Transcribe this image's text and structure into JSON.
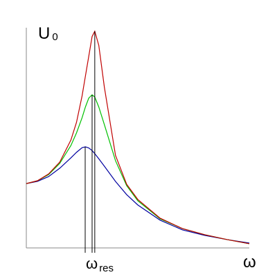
{
  "chart_data": {
    "type": "line",
    "y_label": {
      "text": "U",
      "subscript": "0"
    },
    "x_label": "ω",
    "annotation": {
      "text": "ω",
      "subscript": "res"
    },
    "x": [
      0,
      0.5,
      1,
      1.5,
      2,
      2.25,
      2.5,
      2.65,
      2.8,
      2.95,
      3.07,
      3.25,
      3.5,
      4,
      4.5,
      5,
      6,
      7,
      8,
      9,
      10
    ],
    "series": [
      {
        "color": "#0000a0",
        "values": [
          2.92,
          3.02,
          3.24,
          3.62,
          4.09,
          4.34,
          4.55,
          4.59,
          4.54,
          4.42,
          4.28,
          4.05,
          3.71,
          3.02,
          2.42,
          1.95,
          1.26,
          0.82,
          0.57,
          0.38,
          0.22
        ]
      },
      {
        "color": "#00c000",
        "values": [
          2.92,
          3.05,
          3.33,
          3.84,
          4.65,
          5.22,
          5.91,
          6.4,
          6.8,
          6.95,
          6.85,
          6.4,
          5.6,
          3.96,
          2.83,
          2.14,
          1.32,
          0.88,
          0.6,
          0.38,
          0.19
        ]
      },
      {
        "color": "#c00000",
        "values": [
          2.92,
          3.05,
          3.36,
          3.9,
          4.9,
          5.7,
          6.9,
          7.8,
          8.7,
          9.6,
          9.84,
          9.2,
          7.3,
          4.2,
          2.89,
          2.2,
          1.35,
          0.88,
          0.6,
          0.38,
          0.19
        ]
      }
    ],
    "resonance_lines": {
      "x": [
        2.64,
        2.95,
        3.07
      ],
      "top": [
        4.59,
        6.95,
        9.84
      ]
    },
    "xlim": [
      0,
      10
    ],
    "ylim": [
      0,
      10
    ]
  }
}
